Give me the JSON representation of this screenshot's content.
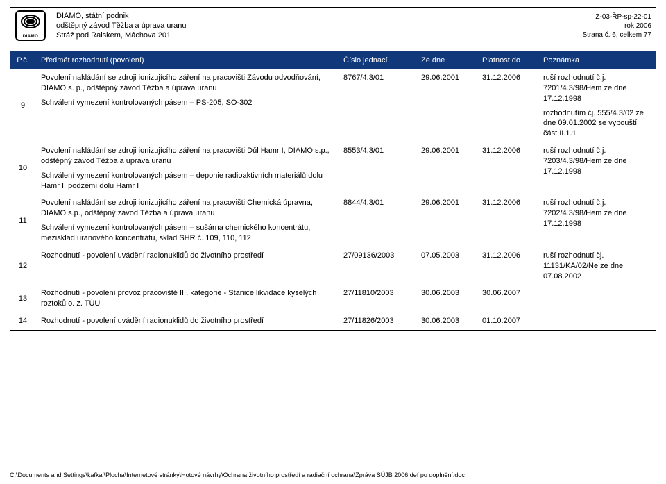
{
  "header": {
    "logo_label": "DIAMO",
    "org_line1": "DIAMO, státní podnik",
    "org_line2": "odštěpný závod Těžba a úprava uranu",
    "org_line3": "Stráž pod Ralskem, Máchova 201",
    "meta_line1": "Z-03-ŘP-sp-22-01",
    "meta_line2": "rok 2006",
    "meta_line3": "Strana č. 6, celkem 77"
  },
  "columns": {
    "num": "P.č.",
    "subject": "Předmět rozhodnutí (povolení)",
    "ref": "Číslo jednací",
    "from": "Ze dne",
    "to": "Platnost do",
    "note": "Poznámka"
  },
  "rows": [
    {
      "num": "9",
      "subject_p1": "Povolení nakládání se zdroji ionizujícího záření na pracovišti Závodu odvodňování, DIAMO s. p., odštěpný závod Těžba a úprava uranu",
      "subject_p2": "Schválení vymezení kontrolovaných pásem – PS-205, SO-302",
      "ref": "8767/4.3/01",
      "from": "29.06.2001",
      "to": "31.12.2006",
      "note_p1": "ruší rozhodnutí č.j. 7201/4.3/98/Hem ze dne 17.12.1998",
      "note_p2": "rozhodnutím čj. 555/4.3/02 ze dne 09.01.2002 se vypouští část II.1.1"
    },
    {
      "num": "10",
      "subject_p1": "Povolení nakládání se zdroji ionizujícího záření na pracovišti Důl Hamr I, DIAMO s.p., odštěpný závod Těžba a úprava uranu",
      "subject_p2": "Schválení vymezení kontrolovaných pásem – deponie radioaktivních materiálů dolu Hamr I, podzemí dolu Hamr I",
      "ref": "8553/4.3/01",
      "from": "29.06.2001",
      "to": "31.12.2006",
      "note_p1": "ruší rozhodnutí č.j. 7203/4.3/98/Hem ze dne 17.12.1998",
      "note_p2": ""
    },
    {
      "num": "11",
      "subject_p1": "Povolení nakládání se zdroji ionizujícího záření na pracovišti Chemická úpravna, DIAMO s.p., odštěpný závod Těžba a úprava uranu",
      "subject_p2": "Schválení vymezení kontrolovaných pásem – sušárna chemického koncentrátu, mezisklad uranového koncentrátu, sklad SHR č. 109, 110, 112",
      "ref": "8844/4.3/01",
      "from": "29.06.2001",
      "to": "31.12.2006",
      "note_p1": "ruší rozhodnutí č.j. 7202/4.3/98/Hem ze dne 17.12.1998",
      "note_p2": ""
    },
    {
      "num": "12",
      "subject_p1": "Rozhodnutí - povolení uvádění radionuklidů do životního prostředí",
      "subject_p2": "",
      "ref": "27/09136/2003",
      "from": "07.05.2003",
      "to": "31.12.2006",
      "note_p1": "ruší rozhodnutí čj. 11131/KA/02/Ne ze dne 07.08.2002",
      "note_p2": ""
    },
    {
      "num": "13",
      "subject_p1": "Rozhodnutí - povolení provoz pracoviště III. kategorie - Stanice likvidace kyselých roztoků o. z. TÚU",
      "subject_p2": "",
      "ref": "27/11810/2003",
      "from": "30.06.2003",
      "to": "30.06.2007",
      "note_p1": "",
      "note_p2": ""
    },
    {
      "num": "14",
      "subject_p1": "Rozhodnutí - povolení uvádění radionuklidů do životního prostředí",
      "subject_p2": "",
      "ref": "27/11826/2003",
      "from": "30.06.2003",
      "to": "01.10.2007",
      "note_p1": "",
      "note_p2": ""
    }
  ],
  "footer": "C:\\Documents and Settings\\kafkaj\\Plocha\\Internetové stránky\\Hotové návrhy\\Ochrana životního prostředí a radiační ochrana\\Zpráva SÚJB 2006 def po doplnění.doc",
  "colors": {
    "header_bg": "#10387a",
    "header_fg": "#ffffff",
    "border": "#000000"
  }
}
